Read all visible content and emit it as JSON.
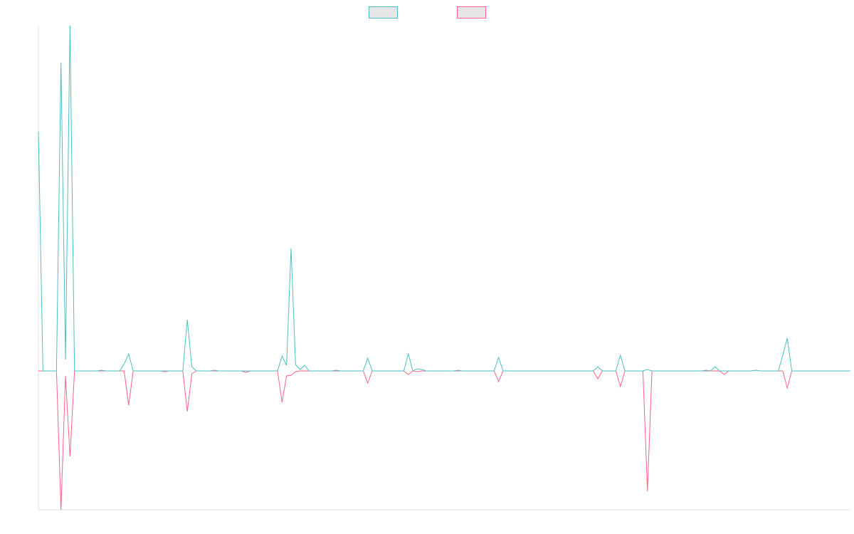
{
  "chart_data": {
    "type": "line",
    "categories": [
      null,
      null,
      null,
      null,
      null,
      null,
      null,
      null,
      null,
      null,
      null,
      null,
      null,
      null,
      null,
      null,
      null,
      null,
      null,
      null,
      null,
      null,
      null,
      null,
      null,
      null,
      null,
      null,
      null,
      null,
      null,
      null,
      null,
      null,
      null,
      null,
      null,
      null,
      null,
      null,
      null,
      null,
      null,
      null,
      null,
      null,
      null,
      null,
      null,
      null,
      null,
      null,
      null,
      null,
      null,
      null,
      null,
      null,
      null,
      null,
      null,
      null,
      null,
      null,
      null,
      null,
      null,
      null,
      null,
      null,
      null,
      null,
      null,
      null,
      null,
      null,
      null,
      null,
      null,
      null,
      null,
      null,
      null,
      null,
      null,
      null,
      null,
      null,
      null,
      null,
      null,
      null,
      null,
      null,
      null,
      null,
      null,
      null,
      null,
      null,
      null,
      null,
      null,
      null,
      null,
      null,
      null,
      null,
      null,
      null,
      null,
      null,
      null,
      null,
      null,
      null,
      null,
      null,
      null,
      null,
      null,
      null,
      null,
      null,
      null,
      null,
      null,
      null,
      null,
      null,
      null,
      null,
      null,
      null,
      null,
      null,
      null,
      null,
      null,
      null,
      null,
      null,
      null,
      null,
      null,
      null,
      null,
      null,
      null,
      null,
      null,
      null,
      null,
      null,
      null,
      null,
      null,
      null,
      null,
      null,
      null,
      null,
      null,
      null,
      null,
      null,
      null,
      null,
      null,
      null,
      null,
      null,
      null,
      null,
      null,
      null,
      null,
      null,
      null,
      null,
      null
    ],
    "series": [
      {
        "color": "#4bc0c0",
        "values": [
          336,
          0,
          0,
          0,
          0,
          433,
          16,
          485,
          0,
          0,
          0,
          0,
          0,
          0,
          1,
          0,
          0,
          0,
          0,
          10,
          24,
          0,
          0,
          0,
          0,
          0,
          0,
          0,
          0,
          0,
          0,
          0,
          0,
          72,
          6,
          0,
          0,
          0,
          0,
          1,
          0,
          0,
          0,
          0,
          0,
          0,
          0,
          0,
          0,
          0,
          0,
          0,
          0,
          0,
          21,
          8,
          172,
          9,
          2,
          8,
          0,
          0,
          0,
          0,
          0,
          0,
          1,
          0,
          0,
          0,
          0,
          0,
          0,
          18,
          0,
          0,
          0,
          0,
          0,
          0,
          0,
          0,
          24,
          0,
          3,
          2,
          0,
          0,
          0,
          0,
          0,
          0,
          0,
          1,
          0,
          0,
          0,
          0,
          0,
          0,
          0,
          0,
          19,
          0,
          0,
          0,
          0,
          0,
          0,
          0,
          0,
          0,
          0,
          0,
          0,
          0,
          0,
          0,
          0,
          0,
          0,
          0,
          0,
          0,
          6,
          0,
          0,
          0,
          0,
          22,
          0,
          0,
          0,
          0,
          0,
          2,
          0,
          0,
          0,
          0,
          0,
          0,
          0,
          0,
          0,
          0,
          0,
          0,
          1,
          0,
          6,
          0,
          0,
          0,
          0,
          0,
          0,
          0,
          0,
          1,
          0,
          0,
          0,
          0,
          0,
          22,
          46,
          0,
          0,
          0,
          0,
          0,
          0,
          0,
          0,
          0,
          0,
          0,
          0,
          0,
          0
        ]
      },
      {
        "color": "#ff6384",
        "values": [
          0,
          0,
          0,
          0,
          0,
          -195,
          -7,
          -120,
          0,
          0,
          0,
          0,
          0,
          0,
          0,
          0,
          0,
          0,
          0,
          0,
          -48,
          0,
          0,
          0,
          0,
          0,
          0,
          0,
          -1,
          0,
          0,
          0,
          0,
          -57,
          -4,
          0,
          0,
          0,
          0,
          0,
          0,
          0,
          0,
          0,
          0,
          0,
          -2,
          0,
          0,
          0,
          0,
          0,
          0,
          0,
          -44,
          -7,
          -6,
          -1,
          0,
          0,
          0,
          0,
          0,
          0,
          0,
          0,
          0,
          0,
          0,
          0,
          0,
          0,
          0,
          -17,
          0,
          0,
          0,
          0,
          0,
          0,
          0,
          0,
          -5,
          0,
          -1,
          0,
          0,
          0,
          0,
          0,
          0,
          0,
          0,
          0,
          0,
          0,
          0,
          0,
          0,
          0,
          0,
          0,
          -15,
          0,
          0,
          0,
          0,
          0,
          0,
          0,
          0,
          0,
          0,
          0,
          0,
          0,
          0,
          0,
          0,
          0,
          0,
          0,
          0,
          0,
          -11,
          0,
          0,
          0,
          0,
          -22,
          0,
          0,
          0,
          0,
          0,
          -169,
          0,
          0,
          0,
          0,
          0,
          0,
          0,
          0,
          0,
          0,
          0,
          0,
          0,
          0,
          0,
          0,
          -5,
          0,
          0,
          0,
          0,
          0,
          0,
          1,
          0,
          0,
          0,
          0,
          0,
          0,
          -24,
          0,
          0,
          0,
          0,
          0,
          0,
          0,
          0,
          0,
          0,
          0,
          0,
          0,
          0
        ]
      }
    ],
    "ylim": [
      -195,
      485
    ],
    "legend": "top"
  }
}
